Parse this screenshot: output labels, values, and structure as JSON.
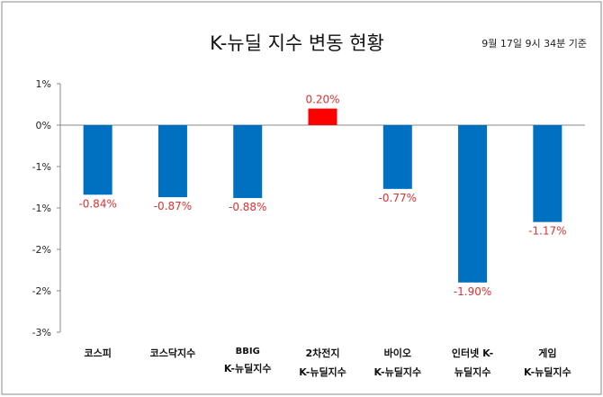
{
  "chart_data": {
    "type": "bar",
    "title": "K-뉴딜 지수 변동 현황",
    "subtitle": "9월 17일 9시 34분 기준",
    "categories": [
      [
        "코스피"
      ],
      [
        "코스닥지수"
      ],
      [
        "BBIG",
        "K-뉴딜지수"
      ],
      [
        "2차전지",
        "K-뉴딜지수"
      ],
      [
        "바이오",
        "K-뉴딜지수"
      ],
      [
        "인터넷 K-",
        "뉴딜지수"
      ],
      [
        "게임",
        "K-뉴딜지수"
      ]
    ],
    "values": [
      -0.84,
      -0.87,
      -0.88,
      0.2,
      -0.77,
      -1.9,
      -1.17
    ],
    "data_labels": [
      "-0.84%",
      "-0.87%",
      "-0.88%",
      "0.20%",
      "-0.77%",
      "-1.90%",
      "-1.17%"
    ],
    "ylim": [
      -2.5,
      0.5
    ],
    "yticks": [
      0.5,
      0,
      -0.5,
      -1,
      -1.5,
      -2,
      -2.5
    ],
    "ytick_labels": [
      "1%",
      "0%",
      "-1%",
      "-1%",
      "-2%",
      "-2%",
      "-3%"
    ],
    "grid": false,
    "colors": {
      "negative": "#0070c0",
      "positive": "#ff0000",
      "label": "#e03030"
    }
  }
}
